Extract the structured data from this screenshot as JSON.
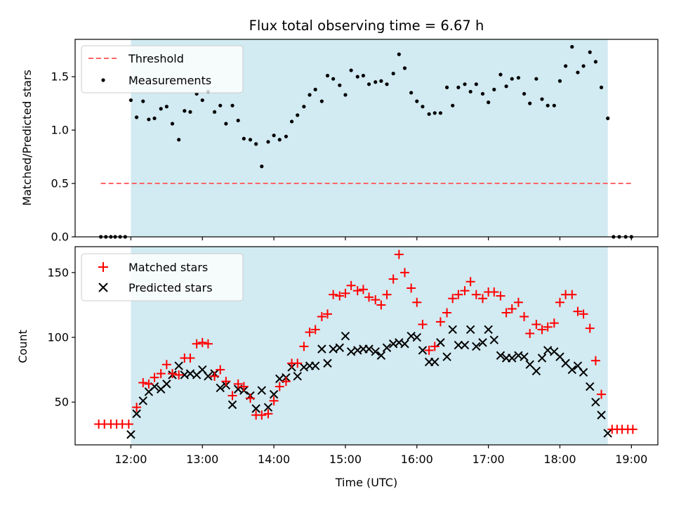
{
  "title": "Flux total observing time = 6.67 h",
  "colors": {
    "shade": "#add8e6",
    "threshold": "#ff6666",
    "measurements": "#000000",
    "matched": "#ff0000",
    "predicted": "#000000"
  },
  "chart_data": [
    {
      "type": "scatter",
      "panel": "top",
      "ylabel": "Matched/Predicted stars",
      "xlim": [
        11.22,
        19.37
      ],
      "ylim": [
        0.0,
        1.85
      ],
      "yticks": [
        0.0,
        0.5,
        1.0,
        1.5
      ],
      "ytick_labels": [
        "0.0",
        "0.5",
        "1.0",
        "1.5"
      ],
      "xticks": [
        12,
        13,
        14,
        15,
        16,
        17,
        18,
        19
      ],
      "shaded_span": [
        12.0,
        18.67
      ],
      "legend": {
        "position": "top-left",
        "entries": [
          {
            "label": "Threshold",
            "style": "dashed-line"
          },
          {
            "label": "Measurements",
            "style": "dot"
          }
        ]
      },
      "threshold": {
        "name": "Threshold",
        "y": 0.5,
        "x": [
          11.58,
          19.0
        ]
      },
      "series": [
        {
          "name": "Measurements",
          "x": [
            11.58,
            11.65,
            11.72,
            11.78,
            11.85,
            11.92,
            12.0,
            12.08,
            12.17,
            12.25,
            12.33,
            12.42,
            12.5,
            12.58,
            12.67,
            12.75,
            12.83,
            12.92,
            13.0,
            13.08,
            13.17,
            13.25,
            13.33,
            13.42,
            13.5,
            13.58,
            13.67,
            13.75,
            13.83,
            13.92,
            14.0,
            14.08,
            14.17,
            14.25,
            14.33,
            14.42,
            14.5,
            14.58,
            14.67,
            14.75,
            14.83,
            14.92,
            15.0,
            15.08,
            15.17,
            15.25,
            15.33,
            15.42,
            15.5,
            15.58,
            15.67,
            15.75,
            15.83,
            15.92,
            16.0,
            16.08,
            16.17,
            16.25,
            16.33,
            16.42,
            16.5,
            16.58,
            16.67,
            16.75,
            16.83,
            16.92,
            17.0,
            17.08,
            17.17,
            17.25,
            17.33,
            17.42,
            17.5,
            17.58,
            17.67,
            17.75,
            17.83,
            17.92,
            18.0,
            18.08,
            18.17,
            18.25,
            18.33,
            18.42,
            18.5,
            18.58,
            18.67,
            18.75,
            18.83,
            18.92,
            19.0
          ],
          "y": [
            0.0,
            0.0,
            0.0,
            0.0,
            0.0,
            0.0,
            1.28,
            1.12,
            1.27,
            1.1,
            1.11,
            1.2,
            1.22,
            1.06,
            0.91,
            1.18,
            1.17,
            1.34,
            1.28,
            1.36,
            1.17,
            1.23,
            1.06,
            1.23,
            1.09,
            0.92,
            0.91,
            0.87,
            0.66,
            0.89,
            0.95,
            0.91,
            0.94,
            1.08,
            1.14,
            1.22,
            1.33,
            1.38,
            1.27,
            1.51,
            1.48,
            1.42,
            1.33,
            1.56,
            1.5,
            1.51,
            1.43,
            1.45,
            1.46,
            1.43,
            1.53,
            1.71,
            1.58,
            1.35,
            1.27,
            1.22,
            1.15,
            1.16,
            1.16,
            1.4,
            1.23,
            1.4,
            1.43,
            1.36,
            1.43,
            1.34,
            1.26,
            1.38,
            1.52,
            1.41,
            1.48,
            1.49,
            1.34,
            1.25,
            1.48,
            1.29,
            1.23,
            1.23,
            1.46,
            1.6,
            1.78,
            1.54,
            1.6,
            1.73,
            1.64,
            1.4,
            1.11,
            0.0,
            0.0,
            0.0,
            0.0
          ]
        }
      ]
    },
    {
      "type": "scatter",
      "panel": "bottom",
      "xlabel": "Time (UTC)",
      "ylabel": "Count",
      "xlim": [
        11.22,
        19.37
      ],
      "ylim": [
        17,
        170
      ],
      "yticks": [
        50,
        100,
        150
      ],
      "ytick_labels": [
        "50",
        "100",
        "150"
      ],
      "xticks": [
        12,
        13,
        14,
        15,
        16,
        17,
        18,
        19
      ],
      "xtick_labels": [
        "12:00",
        "13:00",
        "14:00",
        "15:00",
        "16:00",
        "17:00",
        "18:00",
        "19:00"
      ],
      "shaded_span": [
        12.0,
        18.67
      ],
      "legend": {
        "position": "top-left",
        "entries": [
          {
            "label": "Matched stars",
            "style": "plus"
          },
          {
            "label": "Predicted stars",
            "style": "x"
          }
        ]
      },
      "series": [
        {
          "name": "Matched stars",
          "x": [
            11.55,
            11.63,
            11.72,
            11.8,
            11.88,
            11.97,
            12.08,
            12.17,
            12.25,
            12.33,
            12.42,
            12.5,
            12.58,
            12.67,
            12.75,
            12.83,
            12.92,
            13.0,
            13.08,
            13.17,
            13.25,
            13.33,
            13.42,
            13.5,
            13.58,
            13.67,
            13.75,
            13.83,
            13.92,
            14.0,
            14.08,
            14.17,
            14.25,
            14.33,
            14.42,
            14.5,
            14.58,
            14.67,
            14.75,
            14.83,
            14.92,
            15.0,
            15.08,
            15.17,
            15.25,
            15.33,
            15.42,
            15.5,
            15.58,
            15.67,
            15.75,
            15.83,
            15.92,
            16.0,
            16.08,
            16.17,
            16.25,
            16.33,
            16.42,
            16.5,
            16.58,
            16.67,
            16.75,
            16.83,
            16.92,
            17.0,
            17.08,
            17.17,
            17.25,
            17.33,
            17.42,
            17.5,
            17.58,
            17.67,
            17.75,
            17.83,
            17.92,
            18.0,
            18.08,
            18.17,
            18.25,
            18.33,
            18.42,
            18.5,
            18.58,
            18.73,
            18.8,
            18.87,
            18.95,
            19.02
          ],
          "y": [
            33,
            33,
            33,
            33,
            33,
            33,
            46,
            65,
            64,
            69,
            72,
            79,
            72,
            71,
            84,
            84,
            95,
            96,
            95,
            70,
            75,
            66,
            55,
            64,
            62,
            53,
            40,
            40,
            41,
            51,
            62,
            66,
            80,
            80,
            93,
            104,
            106,
            116,
            118,
            133,
            132,
            134,
            140,
            136,
            137,
            131,
            129,
            125,
            133,
            145,
            164,
            150,
            138,
            127,
            110,
            90,
            93,
            112,
            119,
            130,
            133,
            136,
            143,
            133,
            130,
            135,
            135,
            132,
            119,
            122,
            127,
            116,
            103,
            110,
            106,
            108,
            111,
            127,
            133,
            133,
            120,
            118,
            107,
            82,
            56,
            29,
            29,
            29,
            29,
            29
          ]
        },
        {
          "name": "Predicted stars",
          "x": [
            12.0,
            12.08,
            12.17,
            12.25,
            12.33,
            12.42,
            12.5,
            12.58,
            12.67,
            12.75,
            12.83,
            12.92,
            13.0,
            13.08,
            13.17,
            13.25,
            13.33,
            13.42,
            13.5,
            13.58,
            13.67,
            13.75,
            13.83,
            13.92,
            14.0,
            14.08,
            14.17,
            14.25,
            14.33,
            14.42,
            14.5,
            14.58,
            14.67,
            14.75,
            14.83,
            14.92,
            15.0,
            15.08,
            15.17,
            15.25,
            15.33,
            15.42,
            15.5,
            15.58,
            15.67,
            15.75,
            15.83,
            15.92,
            16.0,
            16.08,
            16.17,
            16.25,
            16.33,
            16.42,
            16.5,
            16.58,
            16.67,
            16.75,
            16.83,
            16.92,
            17.0,
            17.08,
            17.17,
            17.25,
            17.33,
            17.42,
            17.5,
            17.58,
            17.67,
            17.75,
            17.83,
            17.92,
            18.0,
            18.08,
            18.17,
            18.25,
            18.33,
            18.42,
            18.5,
            18.58,
            18.67
          ],
          "y": [
            25,
            41,
            51,
            58,
            62,
            60,
            64,
            71,
            78,
            71,
            72,
            71,
            75,
            70,
            72,
            61,
            63,
            48,
            60,
            59,
            55,
            45,
            59,
            46,
            56,
            68,
            69,
            77,
            70,
            77,
            78,
            78,
            91,
            80,
            91,
            92,
            101,
            89,
            90,
            91,
            91,
            89,
            86,
            92,
            95,
            96,
            95,
            101,
            100,
            90,
            81,
            81,
            96,
            85,
            106,
            94,
            94,
            106,
            93,
            96,
            106,
            98,
            86,
            84,
            84,
            86,
            85,
            79,
            74,
            84,
            90,
            89,
            85,
            80,
            75,
            78,
            73,
            62,
            50,
            40,
            26
          ]
        }
      ]
    }
  ]
}
